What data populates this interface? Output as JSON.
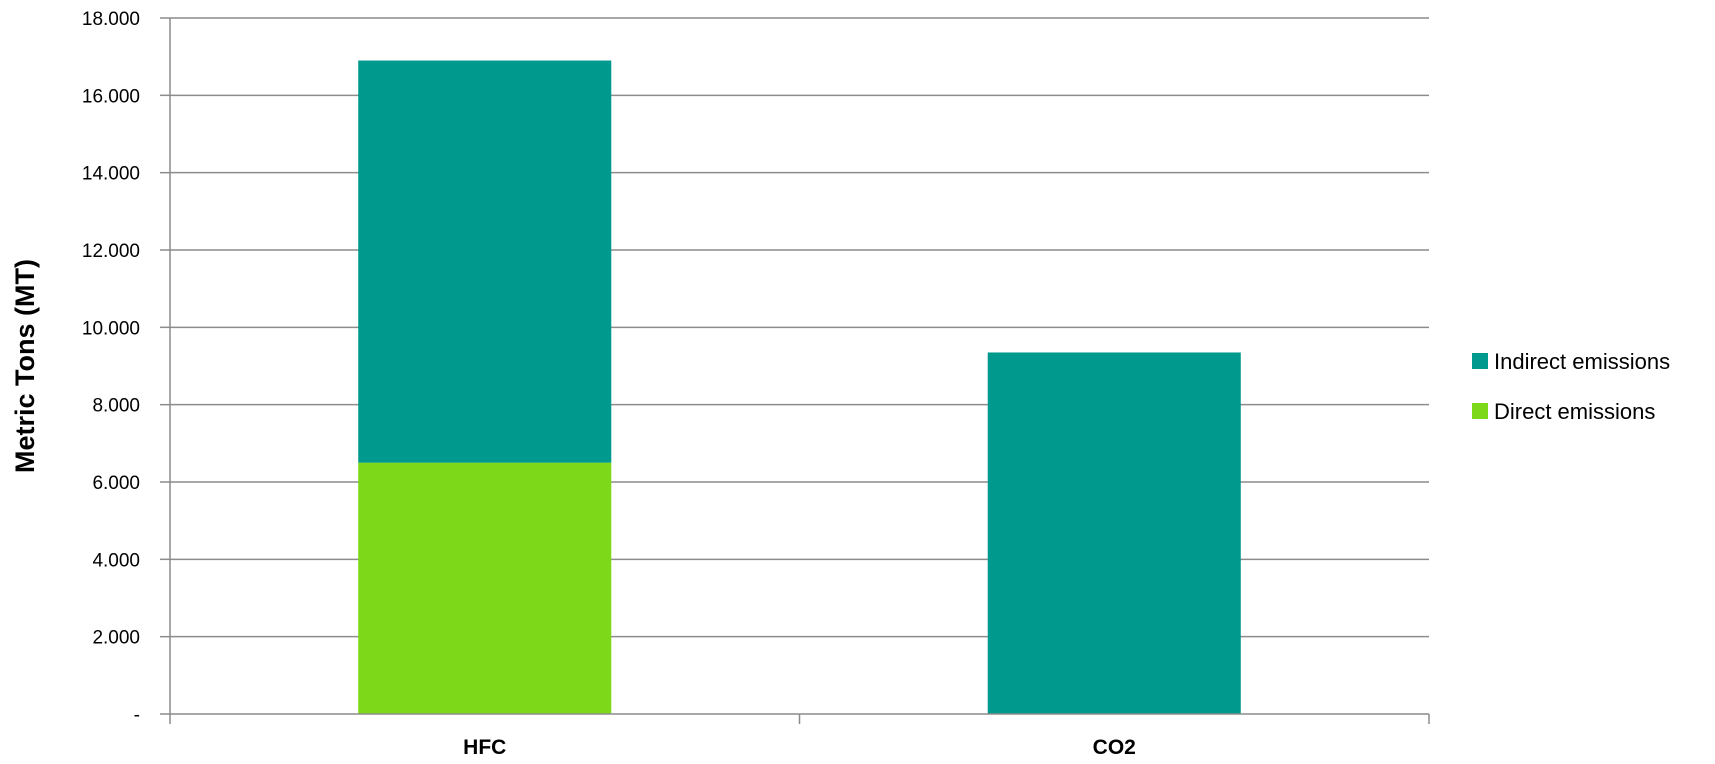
{
  "chart_data": {
    "type": "bar",
    "stacked": true,
    "categories": [
      "HFC",
      "CO2"
    ],
    "series": [
      {
        "name": "Direct emissions",
        "color": "#7ED81A",
        "values": [
          6.5,
          0
        ]
      },
      {
        "name": "Indirect emissions",
        "color": "#00998E",
        "values": [
          10.4,
          9.35
        ]
      }
    ],
    "title": "",
    "xlabel": "",
    "ylabel": "Metric Tons (MT)",
    "ylim": [
      0,
      18
    ],
    "yticks": [
      0,
      2,
      4,
      6,
      8,
      10,
      12,
      14,
      16,
      18
    ],
    "ytick_labels": [
      "-",
      "2.000",
      "4.000",
      "6.000",
      "8.000",
      "10.000",
      "12.000",
      "14.000",
      "16.000",
      "18.000"
    ],
    "grid": true,
    "legend": {
      "placement": "right",
      "order": [
        "Indirect emissions",
        "Direct emissions"
      ]
    },
    "gridline_color": "#8C8C8C"
  }
}
